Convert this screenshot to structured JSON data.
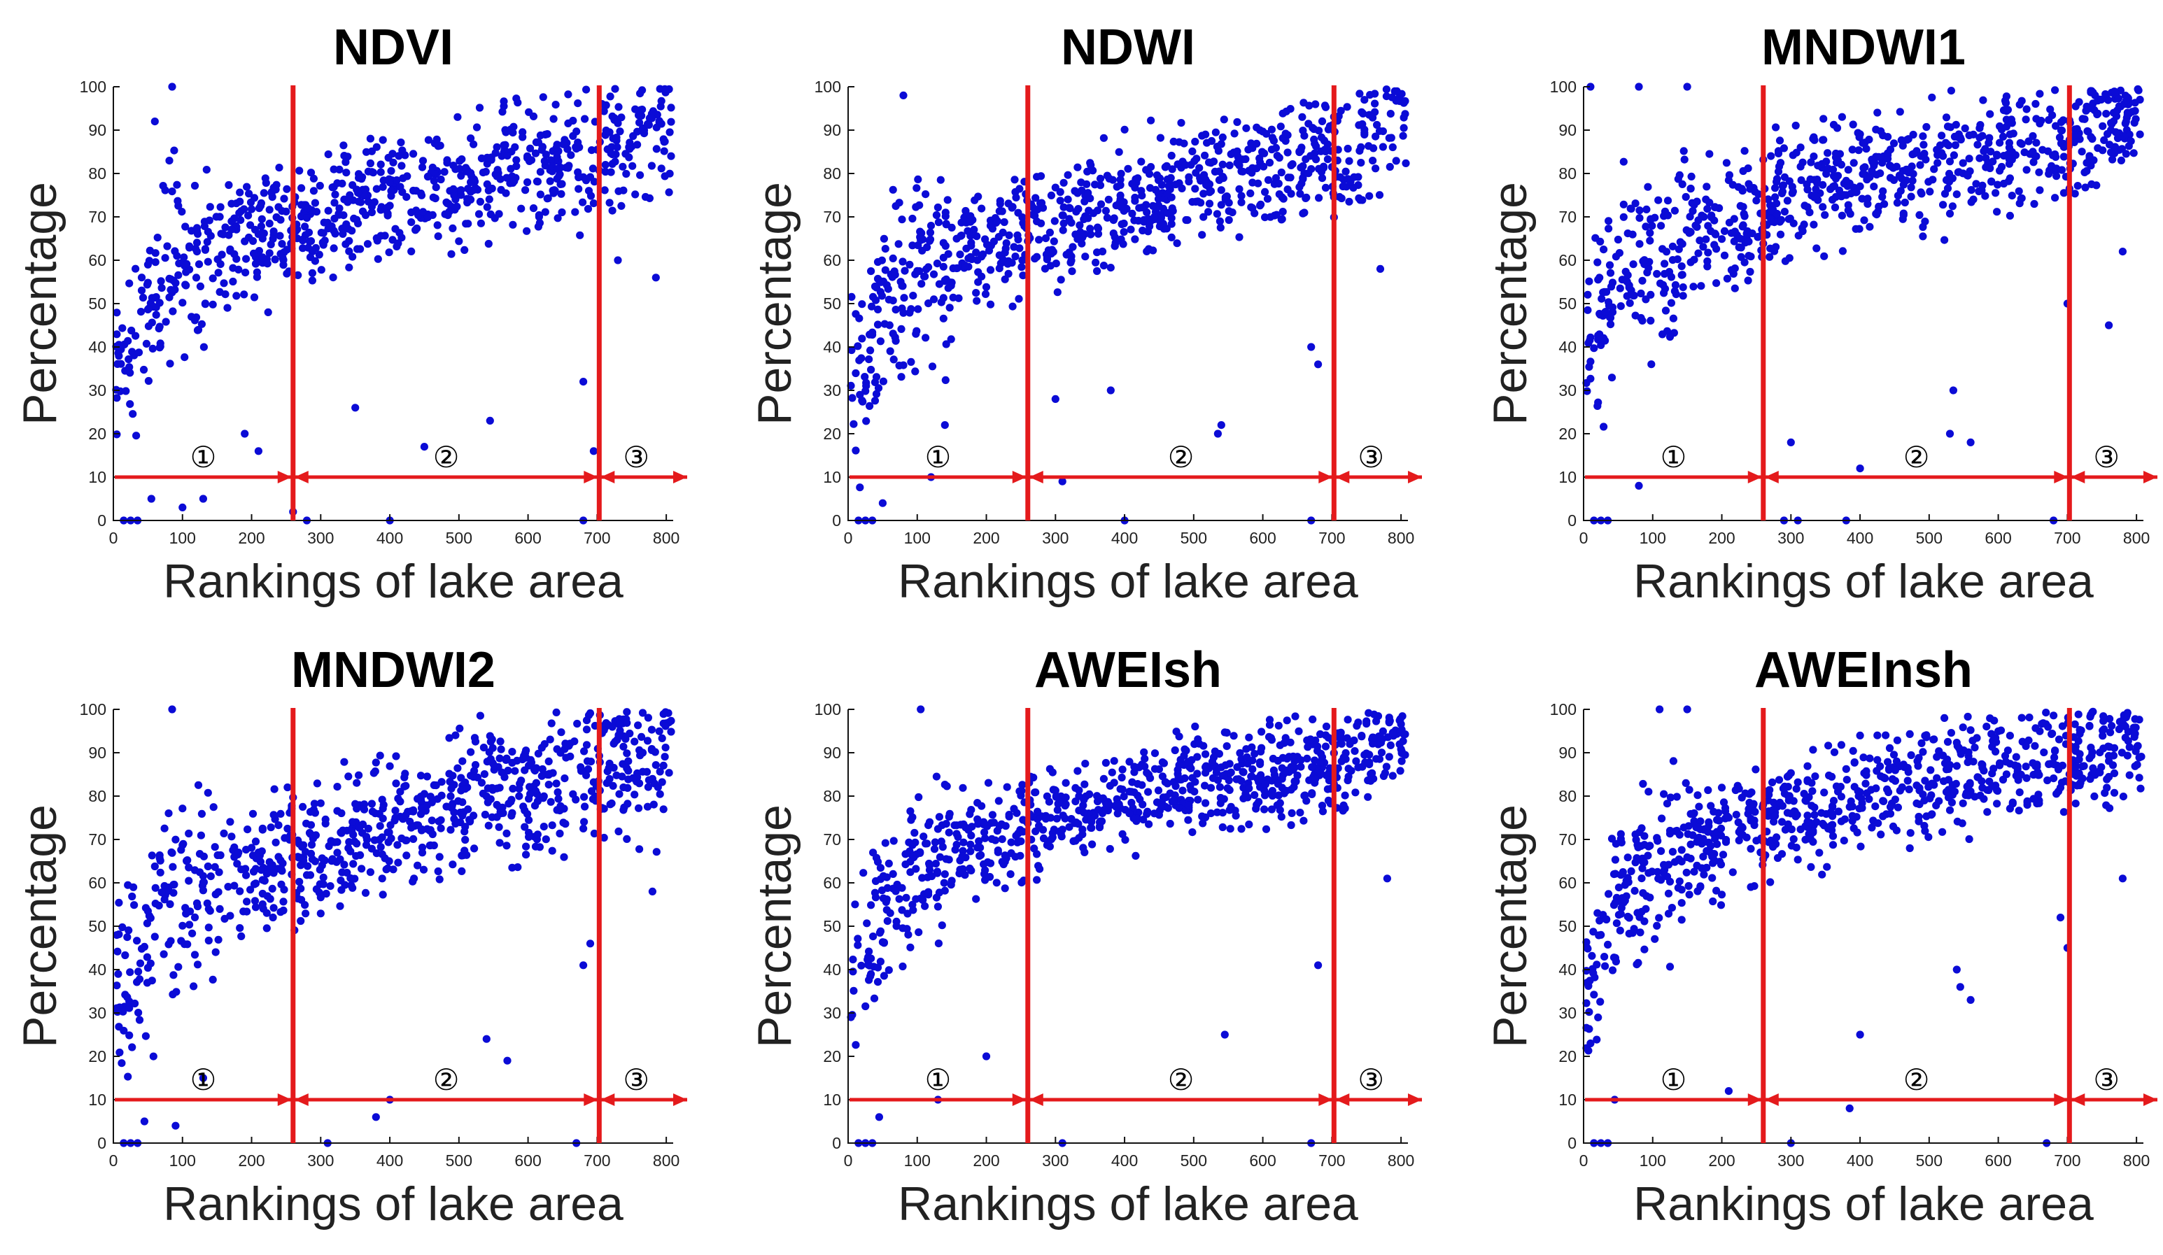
{
  "chart_data": [
    {
      "type": "scatter",
      "title": "NDVI",
      "xlabel": "Rankings of lake area",
      "ylabel": "Percentage",
      "xlim": [
        0,
        810
      ],
      "ylim": [
        0,
        100
      ],
      "xticks": [
        "0",
        "100",
        "200",
        "300",
        "400",
        "500",
        "600",
        "700",
        "800"
      ],
      "yticks": [
        "0",
        "10",
        "20",
        "30",
        "40",
        "50",
        "60",
        "70",
        "80",
        "90",
        "100"
      ],
      "dividers": [
        260,
        703
      ],
      "region_labels": [
        "①",
        "②",
        "③"
      ],
      "arrow_y": 10,
      "series": [
        {
          "name": "lakes",
          "color": "#0b0bd6",
          "n_points": 810,
          "trend": [
            [
              10,
              35
            ],
            [
              60,
              55
            ],
            [
              150,
              64
            ],
            [
              260,
              68
            ],
            [
              400,
              76
            ],
            [
              550,
              80
            ],
            [
              700,
              84
            ],
            [
              810,
              92
            ]
          ],
          "spread": 13,
          "outliers": [
            [
              85,
              100
            ],
            [
              60,
              92
            ],
            [
              15,
              0
            ],
            [
              25,
              0
            ],
            [
              35,
              0
            ],
            [
              55,
              5
            ],
            [
              100,
              3
            ],
            [
              130,
              5
            ],
            [
              260,
              2
            ],
            [
              280,
              0
            ],
            [
              400,
              0
            ],
            [
              680,
              0
            ],
            [
              350,
              26
            ],
            [
              545,
              23
            ],
            [
              450,
              17
            ],
            [
              680,
              32
            ],
            [
              190,
              20
            ],
            [
              210,
              16
            ],
            [
              695,
              16
            ],
            [
              785,
              56
            ],
            [
              730,
              60
            ]
          ]
        }
      ]
    },
    {
      "type": "scatter",
      "title": "NDWI",
      "xlabel": "Rankings of lake area",
      "ylabel": "Percentage",
      "xlim": [
        0,
        810
      ],
      "ylim": [
        0,
        100
      ],
      "xticks": [
        "0",
        "100",
        "200",
        "300",
        "400",
        "500",
        "600",
        "700",
        "800"
      ],
      "yticks": [
        "0",
        "10",
        "20",
        "30",
        "40",
        "50",
        "60",
        "70",
        "80",
        "90",
        "100"
      ],
      "dividers": [
        260,
        703
      ],
      "region_labels": [
        "①",
        "②",
        "③"
      ],
      "arrow_y": 10,
      "series": [
        {
          "name": "lakes",
          "color": "#0b0bd6",
          "n_points": 810,
          "trend": [
            [
              10,
              30
            ],
            [
              60,
              52
            ],
            [
              150,
              62
            ],
            [
              260,
              67
            ],
            [
              400,
              73
            ],
            [
              550,
              79
            ],
            [
              700,
              84
            ],
            [
              810,
              93
            ]
          ],
          "spread": 12,
          "outliers": [
            [
              80,
              98
            ],
            [
              15,
              0
            ],
            [
              25,
              0
            ],
            [
              35,
              0
            ],
            [
              50,
              4
            ],
            [
              120,
              10
            ],
            [
              140,
              22
            ],
            [
              310,
              9
            ],
            [
              400,
              0
            ],
            [
              670,
              0
            ],
            [
              535,
              20
            ],
            [
              540,
              22
            ],
            [
              680,
              36
            ],
            [
              670,
              40
            ],
            [
              770,
              58
            ],
            [
              300,
              28
            ],
            [
              380,
              30
            ]
          ]
        }
      ]
    },
    {
      "type": "scatter",
      "title": "MNDWI1",
      "xlabel": "Rankings of lake area",
      "ylabel": "Percentage",
      "xlim": [
        0,
        810
      ],
      "ylim": [
        0,
        100
      ],
      "xticks": [
        "0",
        "100",
        "200",
        "300",
        "400",
        "500",
        "600",
        "700",
        "800"
      ],
      "yticks": [
        "0",
        "10",
        "20",
        "30",
        "40",
        "50",
        "60",
        "70",
        "80",
        "90",
        "100"
      ],
      "dividers": [
        260,
        703
      ],
      "region_labels": [
        "①",
        "②",
        "③"
      ],
      "arrow_y": 10,
      "series": [
        {
          "name": "lakes",
          "color": "#0b0bd6",
          "n_points": 810,
          "trend": [
            [
              10,
              40
            ],
            [
              60,
              58
            ],
            [
              150,
              66
            ],
            [
              260,
              72
            ],
            [
              400,
              80
            ],
            [
              550,
              84
            ],
            [
              700,
              88
            ],
            [
              810,
              94
            ]
          ],
          "spread": 12,
          "outliers": [
            [
              10,
              100
            ],
            [
              80,
              100
            ],
            [
              150,
              100
            ],
            [
              15,
              0
            ],
            [
              25,
              0
            ],
            [
              35,
              0
            ],
            [
              80,
              8
            ],
            [
              300,
              18
            ],
            [
              310,
              0
            ],
            [
              380,
              0
            ],
            [
              400,
              12
            ],
            [
              530,
              20
            ],
            [
              535,
              30
            ],
            [
              560,
              18
            ],
            [
              680,
              0
            ],
            [
              700,
              50
            ],
            [
              760,
              45
            ],
            [
              780,
              62
            ],
            [
              290,
              0
            ]
          ]
        }
      ]
    },
    {
      "type": "scatter",
      "title": "MNDWI2",
      "xlabel": "Rankings of lake area",
      "ylabel": "Percentage",
      "xlim": [
        0,
        810
      ],
      "ylim": [
        0,
        100
      ],
      "xticks": [
        "0",
        "100",
        "200",
        "300",
        "400",
        "500",
        "600",
        "700",
        "800"
      ],
      "yticks": [
        "0",
        "10",
        "20",
        "30",
        "40",
        "50",
        "60",
        "70",
        "80",
        "90",
        "100"
      ],
      "dividers": [
        260,
        703
      ],
      "region_labels": [
        "①",
        "②",
        "③"
      ],
      "arrow_y": 10,
      "series": [
        {
          "name": "lakes",
          "color": "#0b0bd6",
          "n_points": 810,
          "trend": [
            [
              10,
              32
            ],
            [
              60,
              52
            ],
            [
              150,
              60
            ],
            [
              260,
              66
            ],
            [
              400,
              74
            ],
            [
              550,
              80
            ],
            [
              700,
              84
            ],
            [
              810,
              92
            ]
          ],
          "spread": 14,
          "outliers": [
            [
              85,
              100
            ],
            [
              15,
              0
            ],
            [
              25,
              0
            ],
            [
              35,
              0
            ],
            [
              45,
              5
            ],
            [
              90,
              4
            ],
            [
              130,
              15
            ],
            [
              310,
              0
            ],
            [
              380,
              6
            ],
            [
              400,
              10
            ],
            [
              540,
              24
            ],
            [
              570,
              19
            ],
            [
              680,
              41
            ],
            [
              690,
              46
            ],
            [
              780,
              58
            ],
            [
              670,
              0
            ]
          ]
        }
      ]
    },
    {
      "type": "scatter",
      "title": "AWEIsh",
      "xlabel": "Rankings of lake area",
      "ylabel": "Percentage",
      "xlim": [
        0,
        810
      ],
      "ylim": [
        0,
        100
      ],
      "xticks": [
        "0",
        "100",
        "200",
        "300",
        "400",
        "500",
        "600",
        "700",
        "800"
      ],
      "yticks": [
        "0",
        "10",
        "20",
        "30",
        "40",
        "50",
        "60",
        "70",
        "80",
        "90",
        "100"
      ],
      "dividers": [
        260,
        703
      ],
      "region_labels": [
        "①",
        "②",
        "③"
      ],
      "arrow_y": 10,
      "series": [
        {
          "name": "lakes",
          "color": "#0b0bd6",
          "n_points": 810,
          "trend": [
            [
              10,
              38
            ],
            [
              60,
              58
            ],
            [
              150,
              68
            ],
            [
              260,
              73
            ],
            [
              400,
              79
            ],
            [
              550,
              84
            ],
            [
              700,
              87
            ],
            [
              810,
              94
            ]
          ],
          "spread": 10,
          "outliers": [
            [
              105,
              100
            ],
            [
              15,
              0
            ],
            [
              25,
              0
            ],
            [
              35,
              0
            ],
            [
              45,
              6
            ],
            [
              130,
              10
            ],
            [
              200,
              20
            ],
            [
              310,
              0
            ],
            [
              545,
              25
            ],
            [
              670,
              0
            ],
            [
              680,
              41
            ],
            [
              780,
              61
            ]
          ]
        }
      ]
    },
    {
      "type": "scatter",
      "title": "AWEInsh",
      "xlabel": "Rankings of lake area",
      "ylabel": "Percentage",
      "xlim": [
        0,
        810
      ],
      "ylim": [
        0,
        100
      ],
      "xticks": [
        "0",
        "100",
        "200",
        "300",
        "400",
        "500",
        "600",
        "700",
        "800"
      ],
      "yticks": [
        "0",
        "10",
        "20",
        "30",
        "40",
        "50",
        "60",
        "70",
        "80",
        "90",
        "100"
      ],
      "dividers": [
        260,
        703
      ],
      "region_labels": [
        "①",
        "②",
        "③"
      ],
      "arrow_y": 10,
      "series": [
        {
          "name": "lakes",
          "color": "#0b0bd6",
          "n_points": 810,
          "trend": [
            [
              10,
              38
            ],
            [
              60,
              58
            ],
            [
              150,
              68
            ],
            [
              260,
              74
            ],
            [
              400,
              80
            ],
            [
              550,
              85
            ],
            [
              700,
              88
            ],
            [
              810,
              94
            ]
          ],
          "spread": 11,
          "outliers": [
            [
              110,
              100
            ],
            [
              150,
              100
            ],
            [
              15,
              0
            ],
            [
              25,
              0
            ],
            [
              35,
              0
            ],
            [
              45,
              10
            ],
            [
              210,
              12
            ],
            [
              300,
              0
            ],
            [
              385,
              8
            ],
            [
              400,
              25
            ],
            [
              540,
              40
            ],
            [
              545,
              36
            ],
            [
              560,
              33
            ],
            [
              670,
              0
            ],
            [
              690,
              52
            ],
            [
              700,
              45
            ],
            [
              780,
              61
            ]
          ]
        }
      ]
    }
  ]
}
